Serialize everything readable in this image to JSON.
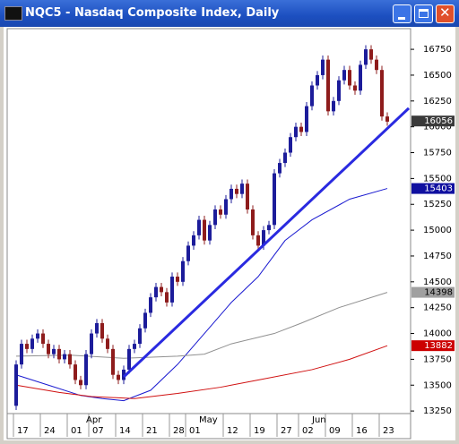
{
  "chart_data": {
    "type": "candlestick",
    "title": "NQC5 - Nasdaq Composite Index, Daily",
    "categories": [
      "17",
      null,
      null,
      null,
      null,
      "24",
      null,
      null,
      null,
      null,
      "01",
      null,
      null,
      null,
      "07",
      null,
      null,
      null,
      null,
      "14",
      null,
      null,
      null,
      null,
      "21",
      null,
      null,
      null,
      null,
      "28",
      null,
      null,
      "01",
      null,
      null,
      null,
      null,
      null,
      null,
      "12",
      null,
      null,
      null,
      null,
      "19",
      null,
      null,
      null,
      null,
      "27",
      null,
      null,
      null,
      "02",
      null,
      null,
      null,
      null,
      "09",
      null,
      null,
      null,
      null,
      "16",
      null,
      null,
      null,
      null,
      "23",
      null
    ],
    "month_categories": [
      null,
      null,
      null,
      null,
      null,
      null,
      null,
      null,
      null,
      null,
      null,
      null,
      null,
      "Apr",
      null,
      null,
      null,
      null,
      null,
      null,
      null,
      null,
      null,
      null,
      null,
      null,
      null,
      null,
      null,
      null,
      null,
      null,
      null,
      null,
      "May",
      null,
      null,
      null,
      null,
      null,
      null,
      null,
      null,
      null,
      null,
      null,
      null,
      null,
      null,
      null,
      null,
      null,
      null,
      null,
      null,
      "Jun",
      null,
      null,
      null,
      null,
      null,
      null,
      null,
      null,
      null,
      null,
      null,
      null,
      null,
      null
    ],
    "open": [
      13300,
      13700,
      13900,
      13850,
      13950,
      14000,
      13900,
      13800,
      13850,
      13750,
      13800,
      13700,
      13550,
      13500,
      13800,
      14000,
      14100,
      13950,
      13850,
      13600,
      13550,
      13650,
      13850,
      13900,
      14050,
      14200,
      14350,
      14450,
      14400,
      14300,
      14550,
      14500,
      14700,
      14850,
      14950,
      15100,
      14900,
      15050,
      15200,
      15150,
      15300,
      15400,
      15350,
      15450,
      15200,
      14950,
      14850,
      15000,
      15050,
      15550,
      15650,
      15750,
      15900,
      16000,
      15950,
      16200,
      16400,
      16500,
      16650,
      16150,
      16250,
      16450,
      16550,
      16400,
      16350,
      16600,
      16750,
      16650,
      16550,
      16100
    ],
    "high": [
      13740,
      13940,
      13940,
      13990,
      14040,
      14040,
      13940,
      13890,
      13890,
      13840,
      13840,
      13740,
      13590,
      13840,
      14040,
      14140,
      14140,
      13990,
      13890,
      13640,
      13690,
      13890,
      13940,
      14090,
      14240,
      14390,
      14490,
      14490,
      14440,
      14590,
      14590,
      14740,
      14890,
      14990,
      15140,
      15140,
      15090,
      15240,
      15240,
      15340,
      15440,
      15440,
      15490,
      15490,
      15240,
      14990,
      15040,
      15090,
      15590,
      15690,
      15790,
      15940,
      16040,
      16040,
      16240,
      16440,
      16540,
      16690,
      16690,
      16290,
      16490,
      16590,
      16590,
      16440,
      16640,
      16790,
      16790,
      16690,
      16590,
      16140
    ],
    "low": [
      13260,
      13660,
      13810,
      13810,
      13910,
      13860,
      13760,
      13760,
      13710,
      13710,
      13660,
      13510,
      13460,
      13460,
      13760,
      13960,
      13910,
      13810,
      13560,
      13510,
      13510,
      13610,
      13810,
      13860,
      14010,
      14160,
      14310,
      14360,
      14260,
      14260,
      14460,
      14460,
      14660,
      14810,
      14910,
      14860,
      14860,
      15010,
      15110,
      15110,
      15260,
      15310,
      15310,
      15160,
      14910,
      14810,
      14810,
      14960,
      15010,
      15510,
      15610,
      15710,
      15860,
      15910,
      15910,
      16160,
      16360,
      16460,
      16110,
      16110,
      16210,
      16410,
      16360,
      16310,
      16310,
      16560,
      16610,
      16510,
      16060,
      16010
    ],
    "close": [
      13700,
      13900,
      13850,
      13950,
      14000,
      13900,
      13800,
      13850,
      13750,
      13800,
      13700,
      13550,
      13500,
      13800,
      14000,
      14100,
      13950,
      13850,
      13600,
      13550,
      13650,
      13850,
      13900,
      14050,
      14200,
      14350,
      14450,
      14400,
      14300,
      14550,
      14500,
      14700,
      14850,
      14950,
      15100,
      14900,
      15050,
      15200,
      15150,
      15300,
      15400,
      15350,
      15450,
      15200,
      14950,
      14850,
      15000,
      15050,
      15550,
      15650,
      15750,
      15900,
      16000,
      15950,
      16200,
      16400,
      16500,
      16650,
      16150,
      16250,
      16450,
      16550,
      16400,
      16350,
      16600,
      16750,
      16650,
      16550,
      16100,
      16050
    ],
    "up_color": "#1c1c9a",
    "down_color": "#8e1c1c",
    "overlays": [
      {
        "color": "#1a1ad0",
        "x": [
          0,
          6,
          12,
          16,
          20,
          25,
          30,
          35,
          40,
          45,
          50,
          55,
          62,
          69
        ],
        "values": [
          13600,
          13500,
          13400,
          13370,
          13350,
          13450,
          13700,
          14000,
          14300,
          14550,
          14900,
          15100,
          15300,
          15403
        ]
      },
      {
        "color": "#909090",
        "x": [
          0,
          10,
          20,
          30,
          35,
          40,
          48,
          53,
          60,
          69
        ],
        "values": [
          13780,
          13790,
          13760,
          13780,
          13800,
          13900,
          14000,
          14100,
          14250,
          14398
        ]
      },
      {
        "color": "#d01010",
        "x": [
          0,
          8,
          14,
          22,
          30,
          38,
          45,
          55,
          62,
          69
        ],
        "values": [
          13500,
          13430,
          13390,
          13370,
          13420,
          13480,
          13550,
          13650,
          13750,
          13882
        ]
      }
    ],
    "trendline": {
      "color": "#2a2ae0",
      "x": [
        20,
        73
      ],
      "values": [
        13580,
        16180
      ]
    },
    "price_tags": [
      {
        "value": 16056,
        "color": "#3a3a3a",
        "text_color": "#ffffff"
      },
      {
        "value": 15403,
        "color": "#1010a0",
        "text_color": "#ffffff"
      },
      {
        "value": 14398,
        "color": "#a0a0a0",
        "text_color": "#000000"
      },
      {
        "value": 13882,
        "color": "#cc0000",
        "text_color": "#ffffff"
      }
    ],
    "ylim": [
      13225,
      16950
    ],
    "yticks": [
      13250,
      13500,
      13750,
      14000,
      14250,
      14500,
      14750,
      15000,
      15250,
      15500,
      15750,
      16000,
      16250,
      16500,
      16750
    ]
  }
}
